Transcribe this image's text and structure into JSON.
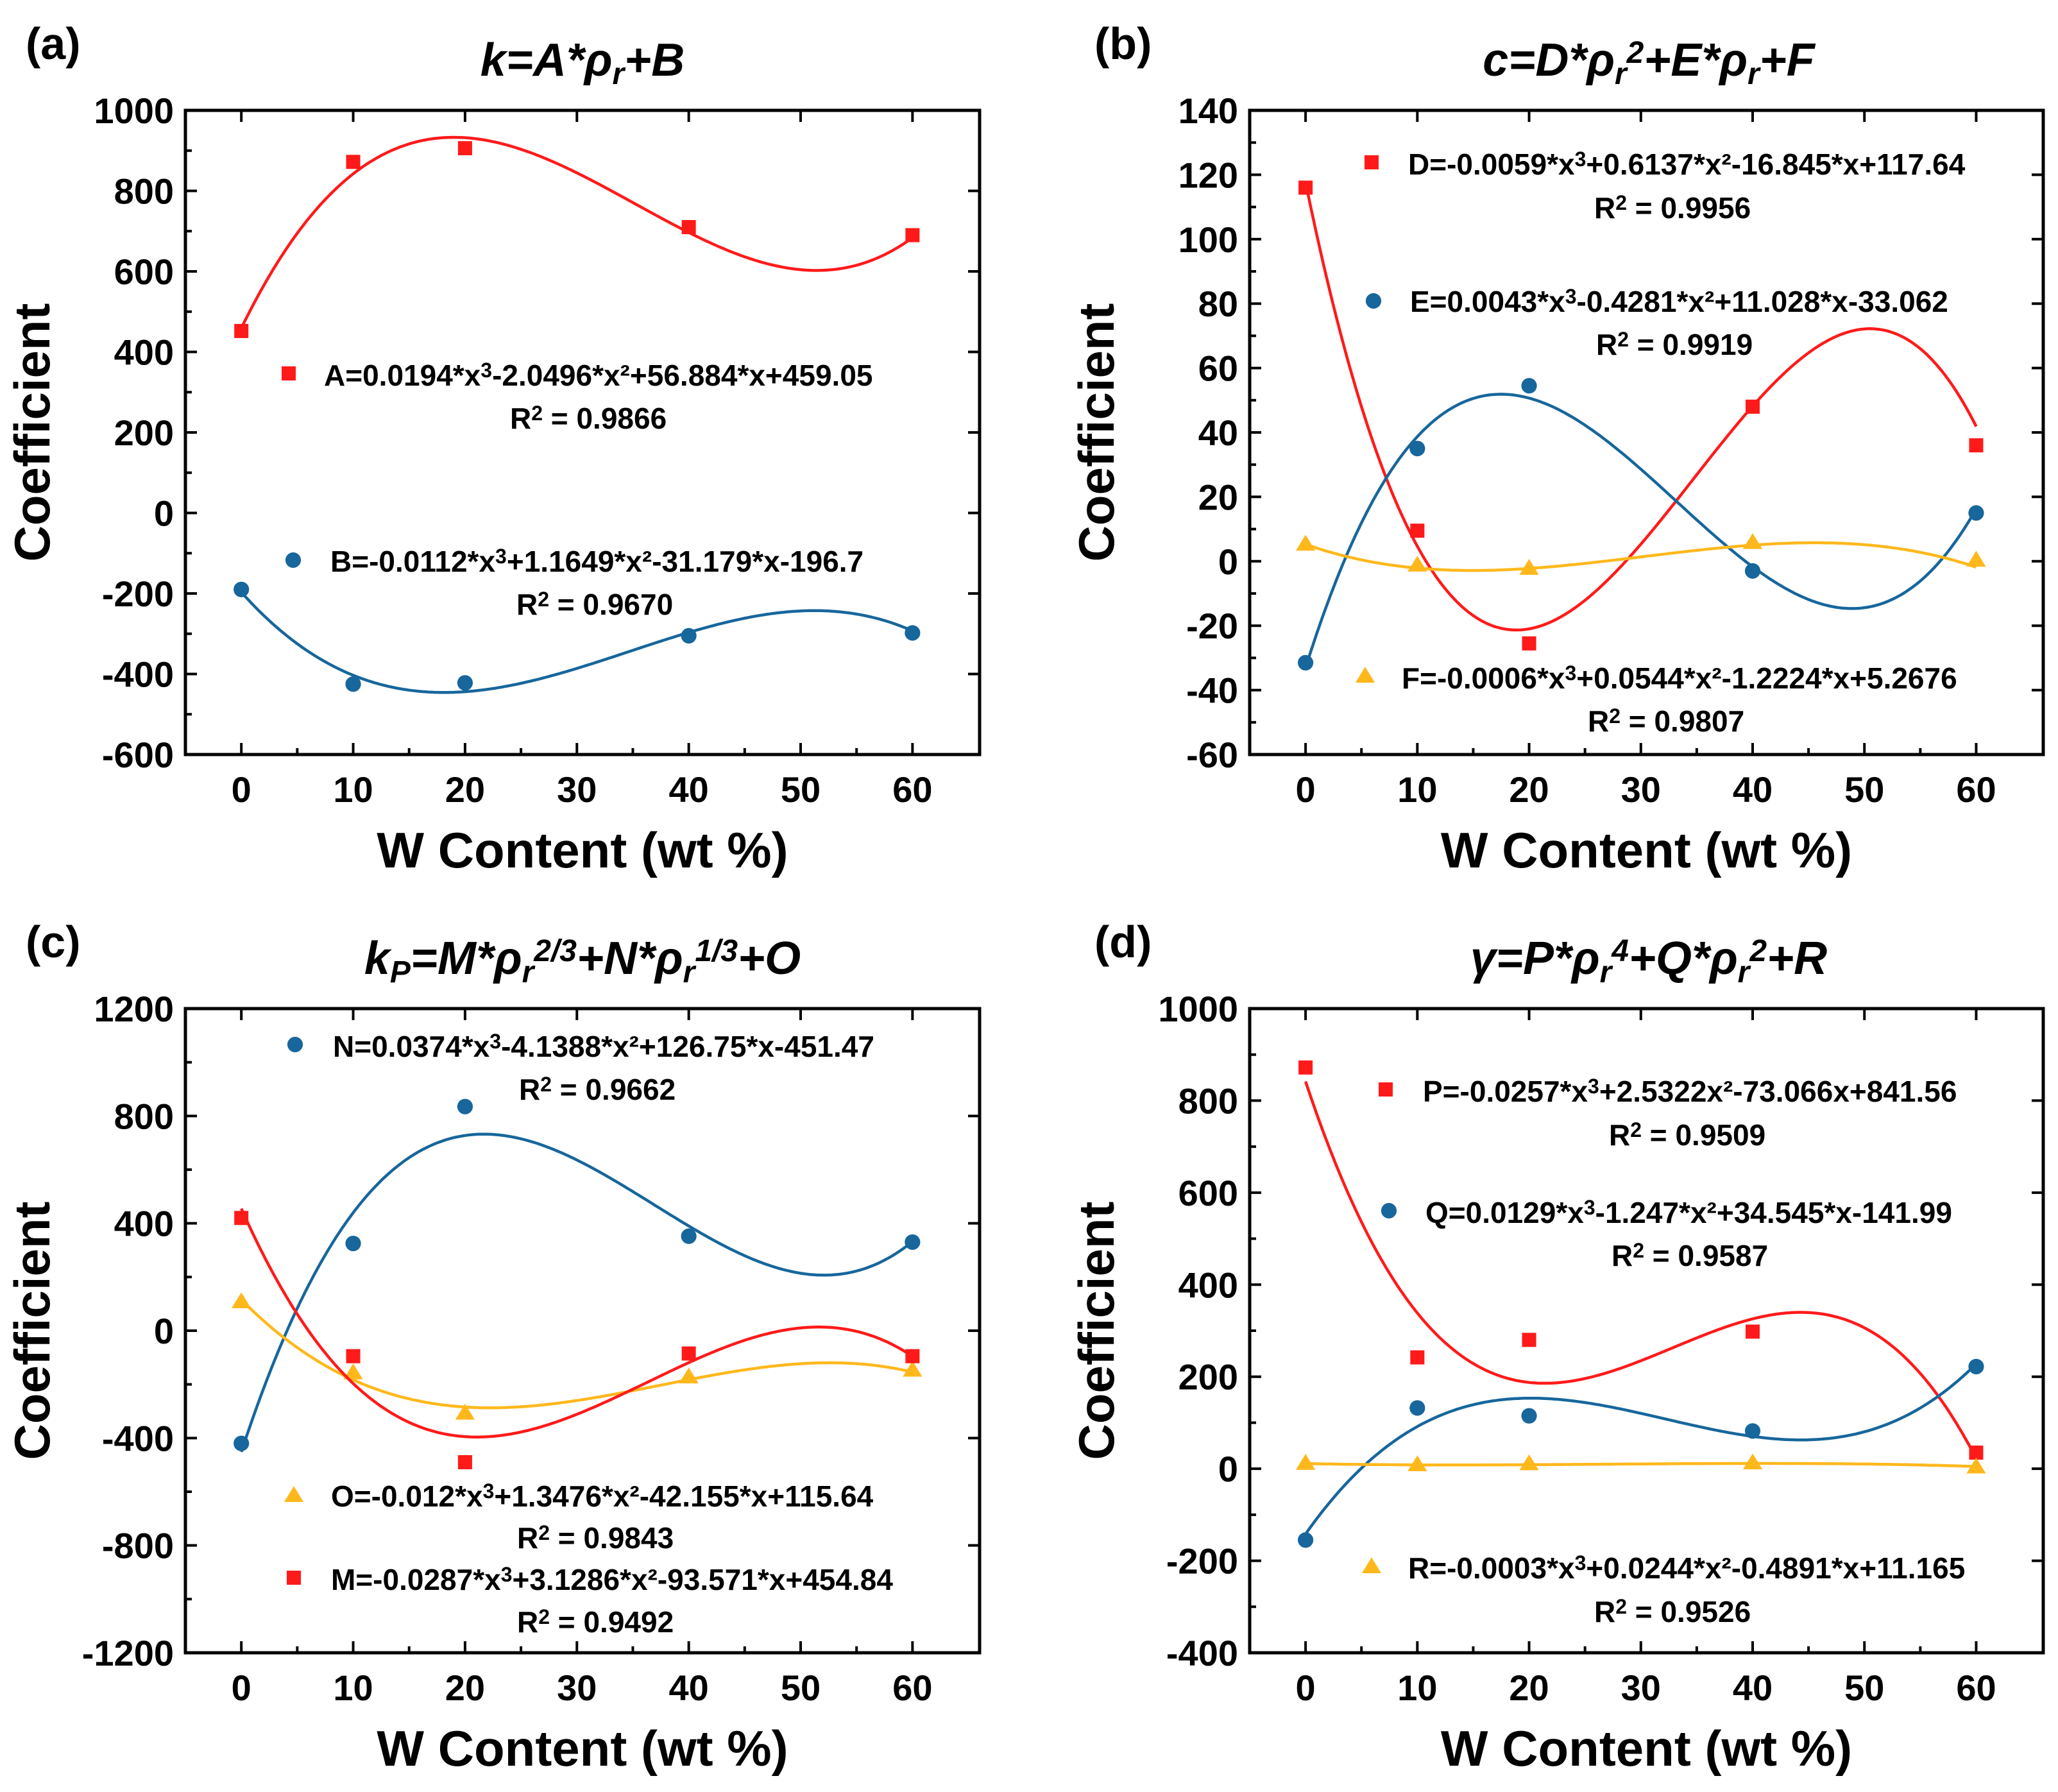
{
  "colors": {
    "red": "#ff1a1a",
    "blue": "#17669c",
    "yellow": "#ffb81c",
    "axis": "#000000"
  },
  "xlabel": "W Content (wt %)",
  "ylabel": "Coefficient",
  "chart_data": [
    {
      "type": "scatter",
      "panel": "(a)",
      "title_parts": [
        {
          "t": "k=A*ρ"
        },
        {
          "t": "r",
          "sub": true
        },
        {
          "t": "+B"
        }
      ],
      "xlabel": "W Content (wt %)",
      "ylabel": "Coefficient",
      "xlim": [
        -5,
        66
      ],
      "ylim": [
        -600,
        1000
      ],
      "xticks": [
        0,
        10,
        20,
        30,
        40,
        50,
        60
      ],
      "yticks": [
        -600,
        -400,
        -200,
        0,
        200,
        400,
        600,
        800,
        1000
      ],
      "series": [
        {
          "name": "A",
          "marker": "square",
          "color": "#ff1a1a",
          "x": [
            0,
            10,
            20,
            40,
            60
          ],
          "y": [
            452,
            872,
            906,
            710,
            690
          ],
          "fit": [
            459.05,
            56.884,
            -2.0496,
            0.0194
          ]
        },
        {
          "name": "B",
          "marker": "circle",
          "color": "#17669c",
          "x": [
            0,
            10,
            20,
            40,
            60
          ],
          "y": [
            -190,
            -425,
            -422,
            -305,
            -298
          ],
          "fit": [
            -196.7,
            -31.179,
            1.1649,
            -0.0112
          ]
        }
      ],
      "annotations": [
        {
          "series": "A",
          "marker": "square",
          "color": "#ff1a1a",
          "eq_base": "A=0.0194*x",
          "eq_rest": "-2.0496*x²+56.884*x+459.05",
          "r2": "= 0.9866"
        },
        {
          "series": "B",
          "marker": "circle",
          "color": "#17669c",
          "eq_base": "B=-0.0112*x",
          "eq_rest": "+1.1649*x²-31.179*x-196.7",
          "r2": "= 0.9670"
        }
      ]
    },
    {
      "type": "scatter",
      "panel": "(b)",
      "title_parts": [
        {
          "t": "c=D*ρ"
        },
        {
          "t": "r",
          "sub": true
        },
        {
          "t": "2",
          "sup": true
        },
        {
          "t": "+E*ρ"
        },
        {
          "t": "r",
          "sub": true
        },
        {
          "t": "+F"
        }
      ],
      "xlabel": "W Content (wt %)",
      "ylabel": "Coefficient",
      "xlim": [
        -5,
        66
      ],
      "ylim": [
        -60,
        140
      ],
      "xticks": [
        0,
        10,
        20,
        30,
        40,
        50,
        60
      ],
      "yticks": [
        -60,
        -40,
        -20,
        0,
        20,
        40,
        60,
        80,
        100,
        120,
        140
      ],
      "series": [
        {
          "name": "D",
          "marker": "square",
          "color": "#ff1a1a",
          "x": [
            0,
            10,
            20,
            40,
            60
          ],
          "y": [
            116,
            9.5,
            -25.5,
            48,
            36
          ],
          "fit": [
            117.64,
            -16.845,
            0.6137,
            -0.0059
          ]
        },
        {
          "name": "E",
          "marker": "circle",
          "color": "#17669c",
          "x": [
            0,
            10,
            20,
            40,
            60
          ],
          "y": [
            -31.5,
            35,
            54.5,
            -3,
            15
          ],
          "fit": [
            -33.062,
            11.028,
            -0.4281,
            0.0043
          ]
        },
        {
          "name": "F",
          "marker": "triangle",
          "color": "#ffb81c",
          "x": [
            0,
            10,
            20,
            40,
            60
          ],
          "y": [
            5.5,
            -1,
            -2,
            6,
            0.5
          ],
          "fit": [
            5.2676,
            -1.2224,
            0.0544,
            -0.0006
          ]
        }
      ],
      "annotations": [
        {
          "series": "D",
          "marker": "square",
          "color": "#ff1a1a",
          "eq_base": "D=-0.0059*x",
          "eq_rest": "+0.6137*x²-16.845*x+117.64",
          "r2": "= 0.9956"
        },
        {
          "series": "E",
          "marker": "circle",
          "color": "#17669c",
          "eq_base": "E=0.0043*x",
          "eq_rest": "-0.4281*x²+11.028*x-33.062",
          "r2": "= 0.9919"
        },
        {
          "series": "F",
          "marker": "triangle",
          "color": "#ffb81c",
          "eq_base": "F=-0.0006*x",
          "eq_rest": "+0.0544*x²-1.2224*x+5.2676",
          "r2": "= 0.9807"
        }
      ]
    },
    {
      "type": "scatter",
      "panel": "(c)",
      "title_parts": [
        {
          "t": "k"
        },
        {
          "t": "P",
          "sub": true
        },
        {
          "t": "=M*ρ"
        },
        {
          "t": "r",
          "sub": true
        },
        {
          "t": "2/3",
          "sup": true
        },
        {
          "t": "+N*ρ"
        },
        {
          "t": "r",
          "sub": true
        },
        {
          "t": "1/3",
          "sup": true
        },
        {
          "t": "+O"
        }
      ],
      "xlabel": "W Content (wt %)",
      "ylabel": "Coefficient",
      "xlim": [
        -5,
        66
      ],
      "ylim": [
        -1200,
        1200
      ],
      "xticks": [
        0,
        10,
        20,
        30,
        40,
        50,
        60
      ],
      "yticks": [
        -1200,
        -800,
        -400,
        0,
        400,
        800,
        1200
      ],
      "series": [
        {
          "name": "N",
          "marker": "circle",
          "color": "#17669c",
          "x": [
            0,
            10,
            20,
            40,
            60
          ],
          "y": [
            -420,
            325,
            835,
            352,
            330
          ],
          "fit": [
            -451.47,
            126.75,
            -4.1388,
            0.0374
          ]
        },
        {
          "name": "O",
          "marker": "triangle",
          "color": "#ffb81c",
          "x": [
            0,
            10,
            20,
            40,
            60
          ],
          "y": [
            110,
            -155,
            -305,
            -170,
            -145
          ],
          "fit": [
            115.64,
            -42.155,
            1.3476,
            -0.012
          ]
        },
        {
          "name": "M",
          "marker": "square",
          "color": "#ff1a1a",
          "x": [
            0,
            10,
            20,
            40,
            60
          ],
          "y": [
            420,
            -95,
            -490,
            -85,
            -95
          ],
          "fit": [
            454.84,
            -93.571,
            3.1286,
            -0.0287
          ]
        }
      ],
      "annotations": [
        {
          "series": "N",
          "marker": "circle",
          "color": "#17669c",
          "eq_base": "N=0.0374*x",
          "eq_rest": "-4.1388*x²+126.75*x-451.47",
          "r2": "= 0.9662"
        },
        {
          "series": "O",
          "marker": "triangle",
          "color": "#ffb81c",
          "eq_base": "O=-0.012*x",
          "eq_rest": "+1.3476*x²-42.155*x+115.64",
          "r2": "= 0.9843"
        },
        {
          "series": "M",
          "marker": "square",
          "color": "#ff1a1a",
          "eq_base": "M=-0.0287*x",
          "eq_rest": "+3.1286*x²-93.571*x+454.84",
          "r2": "= 0.9492"
        }
      ]
    },
    {
      "type": "scatter",
      "panel": "(d)",
      "title_parts": [
        {
          "t": "γ=P*ρ"
        },
        {
          "t": "r",
          "sub": true
        },
        {
          "t": "4",
          "sup": true
        },
        {
          "t": "+Q*ρ"
        },
        {
          "t": "r",
          "sub": true
        },
        {
          "t": "2",
          "sup": true
        },
        {
          "t": "+R"
        }
      ],
      "xlabel": "W Content (wt %)",
      "ylabel": "Coefficient",
      "xlim": [
        -5,
        66
      ],
      "ylim": [
        -400,
        1000
      ],
      "xticks": [
        0,
        10,
        20,
        30,
        40,
        50,
        60
      ],
      "yticks": [
        -400,
        -200,
        0,
        200,
        400,
        600,
        800,
        1000
      ],
      "series": [
        {
          "name": "P",
          "marker": "square",
          "color": "#ff1a1a",
          "x": [
            0,
            10,
            20,
            40,
            60
          ],
          "y": [
            872,
            242,
            280,
            298,
            35
          ],
          "fit": [
            841.56,
            -73.066,
            2.5322,
            -0.0257
          ]
        },
        {
          "name": "Q",
          "marker": "circle",
          "color": "#17669c",
          "x": [
            0,
            10,
            20,
            40,
            60
          ],
          "y": [
            -155,
            132,
            115,
            82,
            222
          ],
          "fit": [
            -141.99,
            34.545,
            -1.247,
            0.0129
          ]
        },
        {
          "name": "R",
          "marker": "triangle",
          "color": "#ffb81c",
          "x": [
            0,
            10,
            20,
            40,
            60
          ],
          "y": [
            13,
            10,
            12,
            14,
            5
          ],
          "fit": [
            11.165,
            -0.4891,
            0.0244,
            -0.0003
          ]
        }
      ],
      "annotations": [
        {
          "series": "P",
          "marker": "square",
          "color": "#ff1a1a",
          "eq_base": "P=-0.0257*x",
          "eq_rest": "+2.5322x²-73.066x+841.56",
          "r2": "= 0.9509"
        },
        {
          "series": "Q",
          "marker": "circle",
          "color": "#17669c",
          "eq_base": "Q=0.0129*x",
          "eq_rest": "-1.247*x²+34.545*x-141.99",
          "r2": "= 0.9587"
        },
        {
          "series": "R",
          "marker": "triangle",
          "color": "#ffb81c",
          "eq_base": "R=-0.0003*x",
          "eq_rest": "+0.0244*x²-0.4891*x+11.165",
          "r2": "= 0.9526"
        }
      ]
    }
  ]
}
